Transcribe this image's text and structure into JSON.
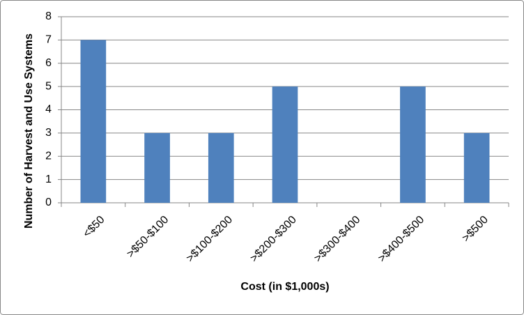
{
  "chart_data": {
    "type": "bar",
    "x_label": "Cost (in $1,000s)",
    "y_label": "Number of Harvest and Use Systems",
    "categories": [
      "<$50",
      ">$50-$100",
      ">$100-$200",
      ">$200-$300",
      ">$300-$400",
      ">$400-$500",
      ">$500"
    ],
    "values": [
      7,
      3,
      3,
      5,
      0,
      5,
      3
    ],
    "color": "#4f81bd",
    "ylim": [
      0,
      8
    ],
    "yticks": [
      0,
      1,
      2,
      3,
      4,
      5,
      6,
      7,
      8
    ],
    "grid": true
  }
}
